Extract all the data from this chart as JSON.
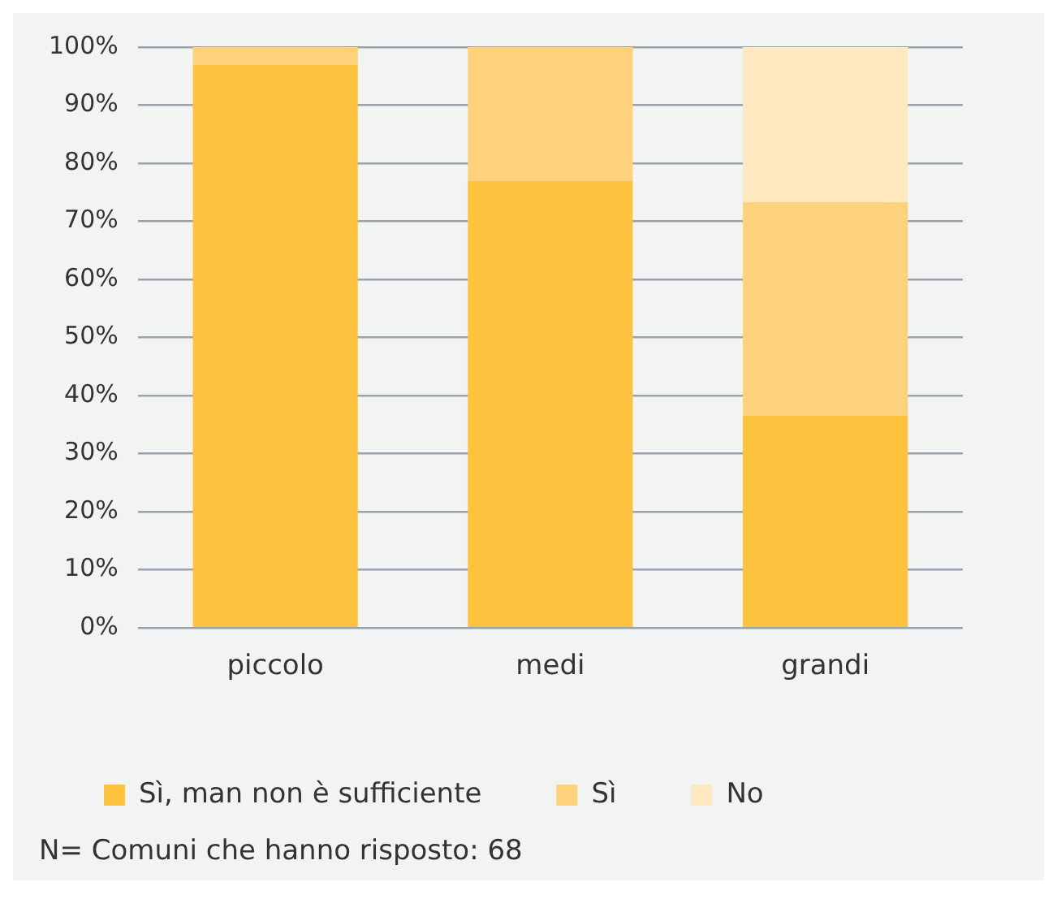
{
  "chart_data": {
    "type": "bar",
    "stacked": true,
    "categories": [
      "piccolo",
      "medi",
      "grandi"
    ],
    "series": [
      {
        "name": "Sì, man non è sufficiente",
        "color": "#fdc33f",
        "values": [
          97,
          77,
          36.6
        ]
      },
      {
        "name": "Sì",
        "color": "#fdd27a",
        "values": [
          3,
          23,
          36.7
        ]
      },
      {
        "name": "No",
        "color": "#fee8c0",
        "values": [
          0,
          0,
          26.7
        ]
      }
    ],
    "ylim": [
      0,
      100
    ],
    "yticks": [
      {
        "value": 0,
        "label": "0%"
      },
      {
        "value": 10,
        "label": "10%"
      },
      {
        "value": 20,
        "label": "20%"
      },
      {
        "value": 30,
        "label": "30%"
      },
      {
        "value": 40,
        "label": "40%"
      },
      {
        "value": 50,
        "label": "50%"
      },
      {
        "value": 60,
        "label": "60%"
      },
      {
        "value": 70,
        "label": "70%"
      },
      {
        "value": 80,
        "label": "80%"
      },
      {
        "value": 90,
        "label": "90%"
      },
      {
        "value": 100,
        "label": "100%"
      }
    ],
    "grid": "y",
    "legend": "bottom left",
    "annotations": [
      "N= Comuni che hanno risposto: 68"
    ]
  }
}
